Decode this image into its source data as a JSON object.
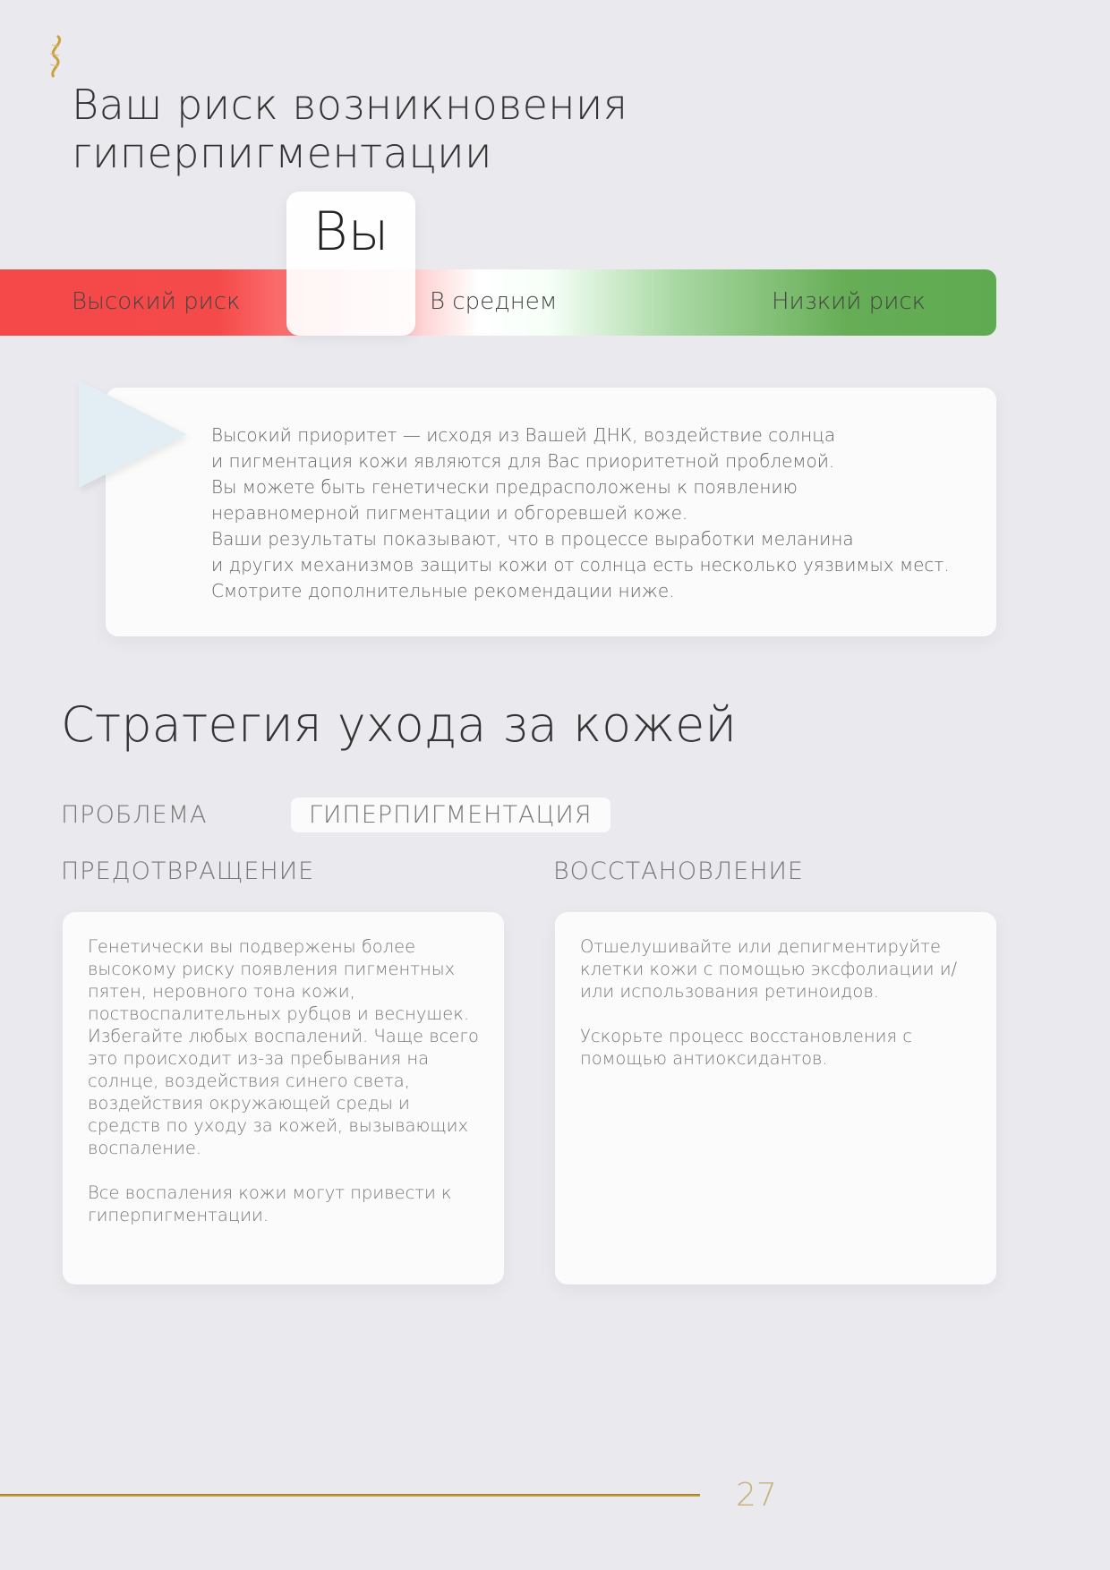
{
  "logo": {
    "icon": "dna-helix-logo",
    "color": "#c9a23f"
  },
  "title_lines": [
    "Ваш риск возникновения",
    "гиперпигментации"
  ],
  "risk_scale": {
    "marker": "Вы",
    "labels": {
      "high": "Высокий риск",
      "mid": "В среднем",
      "low": "Низкий риск"
    },
    "colors": {
      "high": "#f54848",
      "low": "#5fab52"
    },
    "position": "high"
  },
  "summary": {
    "lines": [
      "Высокий приоритет — исходя из Вашей ДНК, воздействие солнца",
      "и пигментация кожи являются для Вас приоритетной проблемой.",
      "Вы можете быть генетически предрасположены к появлению",
      "неравномерной пигментации и обгоревшей коже.",
      "Ваши результаты показывают, что в процессе выработки меланина",
      "и других механизмов защиты кожи от солнца есть несколько уязвимых мест.",
      "Смотрите дополнительные рекомендации ниже."
    ]
  },
  "strategy": {
    "heading": "Стратегия ухода за кожей",
    "problem_label": "ПРОБЛЕМА",
    "problem_value": "ГИПЕРПИГМЕНТАЦИЯ",
    "prevention": {
      "label": "ПРЕДОТВРАЩЕНИЕ",
      "paragraphs": [
        "Генетически вы подвержены более высокому риску появления пигментных пятен, неровного тона кожи, поствоспалительных рубцов и веснушек. Избегайте любых воспалений. Чаще всего это происходит из-за пребывания на солнце, воздействия синего света, воздействия окружающей среды и средств по уходу за кожей, вызывающих воспаление.",
        "Все воспаления кожи могут привести к гиперпигментации."
      ]
    },
    "recovery": {
      "label": "ВОССТАНОВЛЕНИЕ",
      "paragraphs": [
        "Отшелушивайте или депигментируйте клетки кожи с помощью эксфолиации и/или использования ретиноидов.",
        "Ускорьте процесс восстановления с помощью антиоксидантов."
      ]
    }
  },
  "footer": {
    "page_number": "27"
  }
}
